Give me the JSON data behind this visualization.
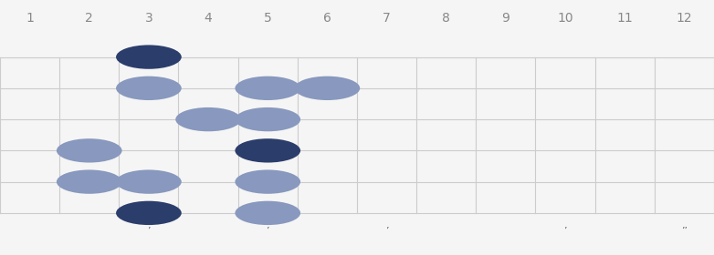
{
  "num_frets": 12,
  "num_strings": 6,
  "fret_labels": [
    "1",
    "2",
    "3",
    "4",
    "5",
    "6",
    "7",
    "8",
    "9",
    "10",
    "11",
    "12"
  ],
  "dots": [
    {
      "fret": 3,
      "string": 1,
      "type": "root"
    },
    {
      "fret": 3,
      "string": 2,
      "type": "scale"
    },
    {
      "fret": 5,
      "string": 2,
      "type": "scale"
    },
    {
      "fret": 6,
      "string": 2,
      "type": "scale"
    },
    {
      "fret": 4,
      "string": 3,
      "type": "scale"
    },
    {
      "fret": 5,
      "string": 3,
      "type": "scale"
    },
    {
      "fret": 2,
      "string": 4,
      "type": "scale"
    },
    {
      "fret": 5,
      "string": 4,
      "type": "root"
    },
    {
      "fret": 2,
      "string": 5,
      "type": "scale"
    },
    {
      "fret": 3,
      "string": 5,
      "type": "scale"
    },
    {
      "fret": 5,
      "string": 5,
      "type": "scale"
    },
    {
      "fret": 3,
      "string": 6,
      "type": "root"
    },
    {
      "fret": 5,
      "string": 6,
      "type": "scale"
    }
  ],
  "position_markers": [
    3,
    5,
    7,
    10,
    12
  ],
  "color_root": "#2b3d6b",
  "color_scale": "#8898be",
  "background_color": "#f5f5f5",
  "grid_color": "#cccccc",
  "label_color": "#888888",
  "marker_color": "#666666",
  "fig_width": 7.82,
  "fig_height": 2.8,
  "dpi": 100
}
